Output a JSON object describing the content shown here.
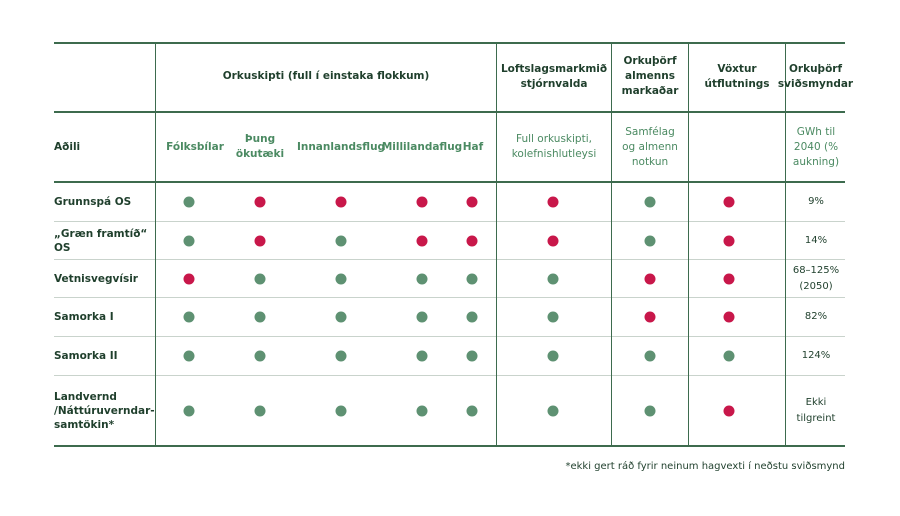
{
  "colors": {
    "green": "#5e9172",
    "red": "#c8174a",
    "rule": "#3d6b4e"
  },
  "header": {
    "groups": {
      "orkuskipti": "Orkuskipti (full í einstaka flokkum)",
      "loftslag": "Loftslagsmarkmið stjórnvalda",
      "almenns": "Orkuþörf almenns markaðar",
      "voxtur": "Vöxtur útflutnings",
      "svidsmynd": "Orkuþörf sviðsmyndar"
    },
    "aðili": "Aðili",
    "sub": {
      "folksbilar": "Fólksbílar",
      "thung": "Þung ökutæki",
      "innanlands": "Innanlandsflug",
      "millilanda": "Millilandaflug",
      "haf": "Haf",
      "full": "Full orkuskipti, kolefnishlutleysi",
      "samfelag": "Samfélag og almenn notkun",
      "gwh": "GWh til 2040 (% aukning)"
    }
  },
  "rows": [
    {
      "label": "Grunnspá OS",
      "dots": [
        "g",
        "r",
        "r",
        "r",
        "r",
        "r",
        "g",
        "r"
      ],
      "value": "9%"
    },
    {
      "label": "„Græn framtíð“ OS",
      "dots": [
        "g",
        "r",
        "g",
        "r",
        "r",
        "r",
        "g",
        "r"
      ],
      "value": "14%"
    },
    {
      "label": "Vetnisvegvísir",
      "dots": [
        "r",
        "g",
        "g",
        "g",
        "g",
        "g",
        "r",
        "r"
      ],
      "value": "68–125% (2050)"
    },
    {
      "label": "Samorka I",
      "dots": [
        "g",
        "g",
        "g",
        "g",
        "g",
        "g",
        "r",
        "r"
      ],
      "value": "82%"
    },
    {
      "label": "Samorka II",
      "dots": [
        "g",
        "g",
        "g",
        "g",
        "g",
        "g",
        "g",
        "g"
      ],
      "value": "124%"
    },
    {
      "label": "Landvernd /Náttúruverndar-samtökin*",
      "dots": [
        "g",
        "g",
        "g",
        "g",
        "g",
        "g",
        "g",
        "r"
      ],
      "value": "Ekki tilgreint"
    }
  ],
  "footnote": "*ekki gert ráð fyrir neinum hagvexti í neðstu sviðsmynd"
}
